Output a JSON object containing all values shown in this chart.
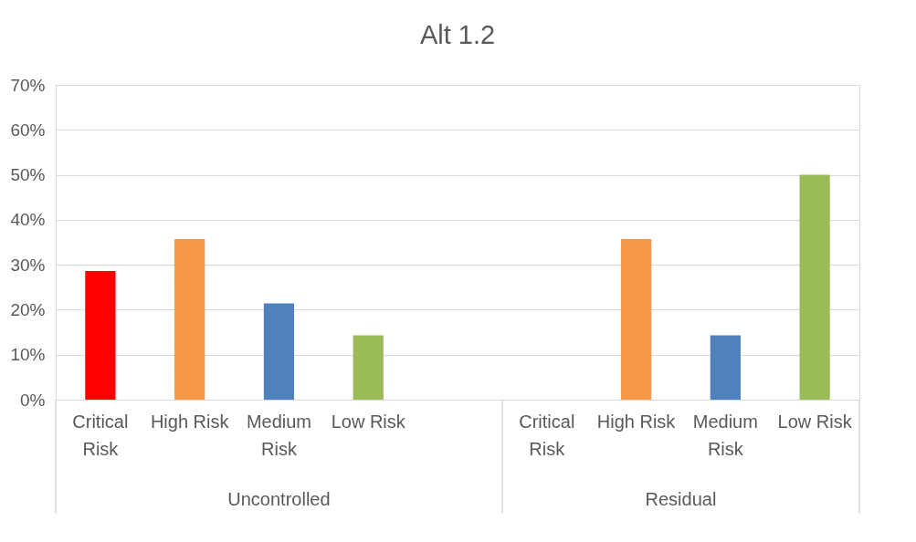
{
  "chart_data": {
    "type": "bar",
    "title": "Alt 1.2",
    "categories": [
      "Critical Risk",
      "High Risk",
      "Medium Risk",
      "Low Risk",
      null,
      "Critical Risk",
      "High Risk",
      "Medium Risk",
      "Low Risk"
    ],
    "values": [
      28.6,
      35.7,
      21.4,
      14.3,
      null,
      0,
      35.7,
      14.3,
      50
    ],
    "colors": [
      "#ff0000",
      "#f79646",
      "#4f81bd",
      "#9bbb59",
      "#4f81bd",
      "#ff0000",
      "#f79646",
      "#4f81bd",
      "#9bbb59"
    ],
    "ylim": [
      0,
      70
    ],
    "yticks": [
      {
        "value": 0,
        "label": "0%"
      },
      {
        "value": 10,
        "label": "10%"
      },
      {
        "value": 20,
        "label": "20%"
      },
      {
        "value": 30,
        "label": "30%"
      },
      {
        "value": 40,
        "label": "40%"
      },
      {
        "value": 50,
        "label": "50%"
      },
      {
        "value": 60,
        "label": "60%"
      },
      {
        "value": 70,
        "label": "70%"
      }
    ],
    "annotations": [
      "Uncontrolled",
      "Residual"
    ],
    "grid": "y"
  }
}
